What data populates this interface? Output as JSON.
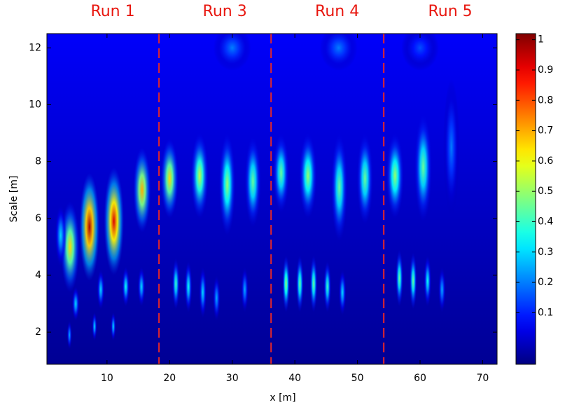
{
  "chart_data": {
    "type": "heatmap",
    "xlabel": "x [m]",
    "ylabel": "Scale [m]",
    "xlim": [
      0.4,
      72.3
    ],
    "ylim": [
      0.87,
      12.5
    ],
    "xticks": [
      10,
      20,
      30,
      40,
      50,
      60,
      70
    ],
    "yticks": [
      2,
      4,
      6,
      8,
      10,
      12
    ],
    "clim": [
      -0.07,
      1.02
    ],
    "cticks": [
      0.1,
      0.2,
      0.3,
      0.4,
      0.5,
      0.6,
      0.7,
      0.8,
      0.9,
      1
    ],
    "colormap": "jet",
    "run_labels": [
      "Run 1",
      "Run 3",
      "Run 4",
      "Run 5"
    ],
    "boundaries": [
      18.3,
      36.2,
      54.2
    ],
    "boundary_color": "#e0262b",
    "label_color": "#e8170f",
    "blobs": [
      {
        "x": 4.1,
        "y": 5.0,
        "value": 0.65,
        "sx": 1.5,
        "sy": 1.6
      },
      {
        "x": 2.6,
        "y": 5.4,
        "value": 0.3,
        "sx": 0.9,
        "sy": 1.1
      },
      {
        "x": 7.2,
        "y": 5.7,
        "value": 0.97,
        "sx": 1.6,
        "sy": 1.9
      },
      {
        "x": 11.1,
        "y": 5.9,
        "value": 0.92,
        "sx": 1.6,
        "sy": 1.9
      },
      {
        "x": 15.6,
        "y": 7.0,
        "value": 0.7,
        "sx": 1.4,
        "sy": 1.5
      },
      {
        "x": 5.0,
        "y": 3.0,
        "value": 0.3,
        "sx": 0.6,
        "sy": 0.6
      },
      {
        "x": 9.0,
        "y": 3.5,
        "value": 0.3,
        "sx": 0.6,
        "sy": 0.7
      },
      {
        "x": 13.0,
        "y": 3.6,
        "value": 0.35,
        "sx": 0.6,
        "sy": 0.7
      },
      {
        "x": 15.5,
        "y": 3.6,
        "value": 0.3,
        "sx": 0.6,
        "sy": 0.7
      },
      {
        "x": 8.0,
        "y": 2.2,
        "value": 0.3,
        "sx": 0.4,
        "sy": 0.5
      },
      {
        "x": 11.0,
        "y": 2.2,
        "value": 0.3,
        "sx": 0.4,
        "sy": 0.5
      },
      {
        "x": 4.0,
        "y": 1.9,
        "value": 0.25,
        "sx": 0.4,
        "sy": 0.5
      },
      {
        "x": 20.0,
        "y": 7.4,
        "value": 0.65,
        "sx": 1.4,
        "sy": 1.4
      },
      {
        "x": 24.8,
        "y": 7.5,
        "value": 0.55,
        "sx": 1.4,
        "sy": 1.5
      },
      {
        "x": 29.2,
        "y": 7.2,
        "value": 0.5,
        "sx": 1.3,
        "sy": 1.8
      },
      {
        "x": 33.3,
        "y": 7.3,
        "value": 0.45,
        "sx": 1.3,
        "sy": 1.6
      },
      {
        "x": 21.0,
        "y": 3.7,
        "value": 0.4,
        "sx": 0.6,
        "sy": 0.9
      },
      {
        "x": 23.0,
        "y": 3.6,
        "value": 0.35,
        "sx": 0.6,
        "sy": 0.9
      },
      {
        "x": 25.3,
        "y": 3.4,
        "value": 0.3,
        "sx": 0.6,
        "sy": 0.9
      },
      {
        "x": 27.5,
        "y": 3.2,
        "value": 0.25,
        "sx": 0.6,
        "sy": 0.8
      },
      {
        "x": 32.0,
        "y": 3.5,
        "value": 0.25,
        "sx": 0.6,
        "sy": 0.8
      },
      {
        "x": 37.8,
        "y": 7.6,
        "value": 0.45,
        "sx": 1.3,
        "sy": 1.4
      },
      {
        "x": 42.1,
        "y": 7.5,
        "value": 0.5,
        "sx": 1.4,
        "sy": 1.5
      },
      {
        "x": 47.1,
        "y": 7.1,
        "value": 0.45,
        "sx": 1.3,
        "sy": 1.9
      },
      {
        "x": 51.2,
        "y": 7.4,
        "value": 0.45,
        "sx": 1.3,
        "sy": 1.6
      },
      {
        "x": 38.6,
        "y": 3.7,
        "value": 0.5,
        "sx": 0.6,
        "sy": 1.0
      },
      {
        "x": 40.8,
        "y": 3.7,
        "value": 0.45,
        "sx": 0.6,
        "sy": 1.0
      },
      {
        "x": 43.0,
        "y": 3.7,
        "value": 0.45,
        "sx": 0.6,
        "sy": 1.0
      },
      {
        "x": 45.2,
        "y": 3.6,
        "value": 0.4,
        "sx": 0.6,
        "sy": 0.9
      },
      {
        "x": 47.6,
        "y": 3.4,
        "value": 0.3,
        "sx": 0.6,
        "sy": 0.8
      },
      {
        "x": 56.0,
        "y": 7.5,
        "value": 0.5,
        "sx": 1.4,
        "sy": 1.5
      },
      {
        "x": 60.5,
        "y": 7.8,
        "value": 0.45,
        "sx": 1.4,
        "sy": 1.9
      },
      {
        "x": 65.0,
        "y": 8.5,
        "value": 0.2,
        "sx": 1.3,
        "sy": 2.4
      },
      {
        "x": 56.7,
        "y": 3.9,
        "value": 0.45,
        "sx": 0.6,
        "sy": 1.0
      },
      {
        "x": 58.9,
        "y": 3.8,
        "value": 0.45,
        "sx": 0.6,
        "sy": 1.0
      },
      {
        "x": 61.2,
        "y": 3.8,
        "value": 0.35,
        "sx": 0.6,
        "sy": 0.9
      },
      {
        "x": 63.5,
        "y": 3.5,
        "value": 0.25,
        "sx": 0.6,
        "sy": 0.8
      },
      {
        "x": 30.0,
        "y": 12.0,
        "value": 0.2,
        "sx": 3.0,
        "sy": 0.8
      },
      {
        "x": 47.0,
        "y": 12.0,
        "value": 0.2,
        "sx": 3.0,
        "sy": 0.8
      },
      {
        "x": 60.0,
        "y": 12.0,
        "value": 0.15,
        "sx": 3.0,
        "sy": 0.8
      }
    ]
  }
}
